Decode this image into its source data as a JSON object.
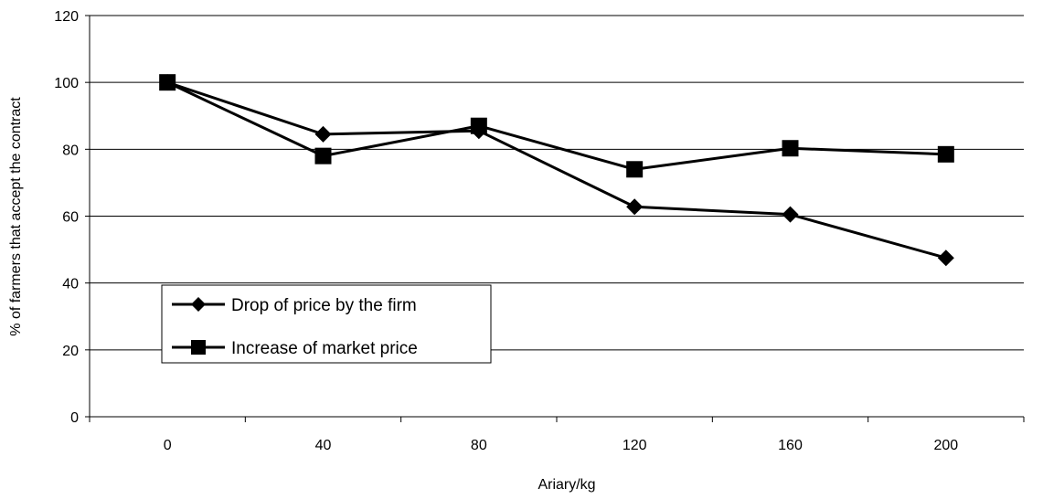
{
  "chart_data": {
    "type": "line",
    "xlabel": "Ariary/kg",
    "ylabel": "% of farmers that accept the contract",
    "categories": [
      "0",
      "40",
      "80",
      "120",
      "160",
      "200"
    ],
    "ylim": [
      0,
      120
    ],
    "yticks": [
      0,
      20,
      40,
      60,
      80,
      100,
      120
    ],
    "grid": "horizontal",
    "legend_position": "lower-left",
    "series": [
      {
        "name": "Drop of price by the firm",
        "marker": "diamond",
        "color": "#000000",
        "values": [
          100,
          84.5,
          85.5,
          62.8,
          60.5,
          47.5
        ]
      },
      {
        "name": "Increase of market price",
        "marker": "square",
        "color": "#000000",
        "values": [
          100,
          78,
          87,
          74,
          80.3,
          78.5
        ]
      }
    ]
  }
}
